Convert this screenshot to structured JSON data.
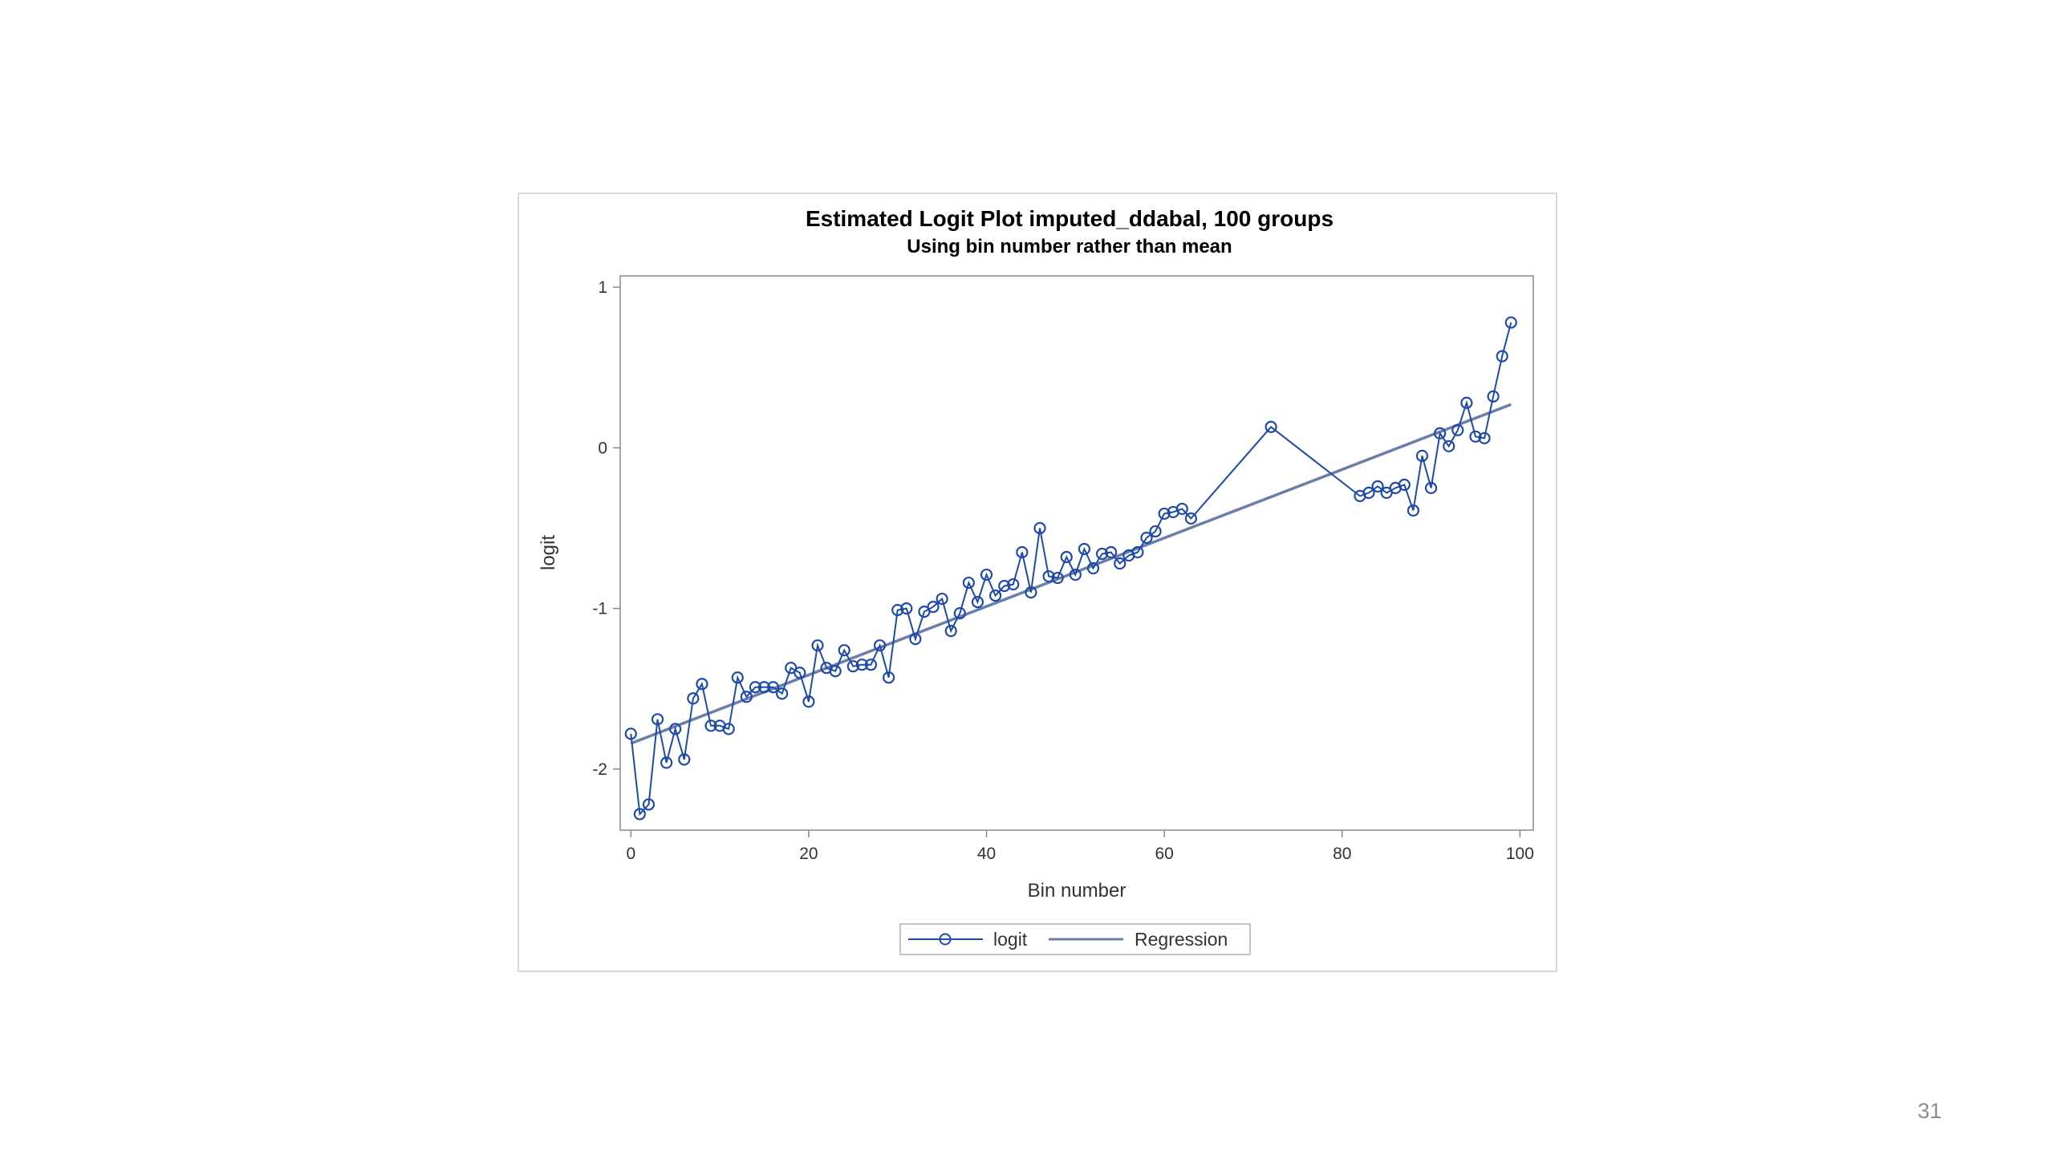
{
  "slide": {
    "page_number": "31"
  },
  "colors": {
    "logit_series": "#1f4aa8",
    "regression_line": "#6a7fa8",
    "axis": "#888888",
    "frame": "#d9d9d9"
  },
  "icons": {
    "logit_marker": "circle-marker-icon"
  },
  "chart_data": {
    "type": "line",
    "title": "Estimated Logit Plot imputed_ddabal, 100 groups",
    "subtitle": "Using bin number rather than mean",
    "xlabel": "Bin number",
    "ylabel": "logit",
    "xlim": [
      -1.2,
      101.5
    ],
    "ylim": [
      -2.38,
      1.07
    ],
    "xticks": [
      0,
      20,
      40,
      60,
      80,
      100
    ],
    "xtick_labels": [
      "0",
      "20",
      "40",
      "60",
      "80",
      "100"
    ],
    "yticks": [
      1,
      0,
      -1,
      -2
    ],
    "ytick_labels": [
      "1",
      "0",
      "-1",
      "-2"
    ],
    "grid": false,
    "legend": {
      "placement": "bottom-center",
      "entries": [
        "logit",
        "Regression"
      ]
    },
    "series": [
      {
        "name": "logit",
        "style": "line-with-circle-markers",
        "x": [
          0,
          1,
          2,
          3,
          4,
          5,
          6,
          7,
          8,
          9,
          10,
          11,
          12,
          13,
          14,
          15,
          16,
          17,
          18,
          19,
          20,
          21,
          22,
          23,
          24,
          25,
          26,
          27,
          28,
          29,
          30,
          31,
          32,
          33,
          34,
          35,
          36,
          37,
          38,
          39,
          40,
          41,
          42,
          43,
          44,
          45,
          46,
          47,
          48,
          49,
          50,
          51,
          52,
          53,
          54,
          55,
          56,
          57,
          58,
          59,
          60,
          61,
          62,
          63,
          72,
          82,
          83,
          84,
          85,
          86,
          87,
          88,
          89,
          90,
          91,
          92,
          93,
          94,
          95,
          96,
          97,
          98,
          99
        ],
        "y": [
          -1.78,
          -2.28,
          -2.22,
          -1.69,
          -1.96,
          -1.75,
          -1.94,
          -1.56,
          -1.47,
          -1.73,
          -1.73,
          -1.75,
          -1.43,
          -1.55,
          -1.49,
          -1.49,
          -1.49,
          -1.53,
          -1.37,
          -1.4,
          -1.58,
          -1.23,
          -1.37,
          -1.39,
          -1.26,
          -1.36,
          -1.35,
          -1.35,
          -1.23,
          -1.43,
          -1.01,
          -1.0,
          -1.19,
          -1.02,
          -0.99,
          -0.94,
          -1.14,
          -1.03,
          -0.84,
          -0.96,
          -0.79,
          -0.92,
          -0.86,
          -0.85,
          -0.65,
          -0.9,
          -0.5,
          -0.8,
          -0.81,
          -0.68,
          -0.79,
          -0.63,
          -0.75,
          -0.66,
          -0.65,
          -0.72,
          -0.67,
          -0.65,
          -0.56,
          -0.52,
          -0.41,
          -0.4,
          -0.38,
          -0.44,
          0.13,
          -0.3,
          -0.28,
          -0.24,
          -0.28,
          -0.25,
          -0.23,
          -0.39,
          -0.05,
          -0.25,
          0.09,
          0.01,
          0.11,
          0.28,
          0.07,
          0.06,
          0.32,
          0.57,
          0.78
        ]
      },
      {
        "name": "Regression",
        "style": "straight-line",
        "x": [
          0,
          99
        ],
        "y": [
          -1.84,
          0.27
        ]
      }
    ]
  }
}
